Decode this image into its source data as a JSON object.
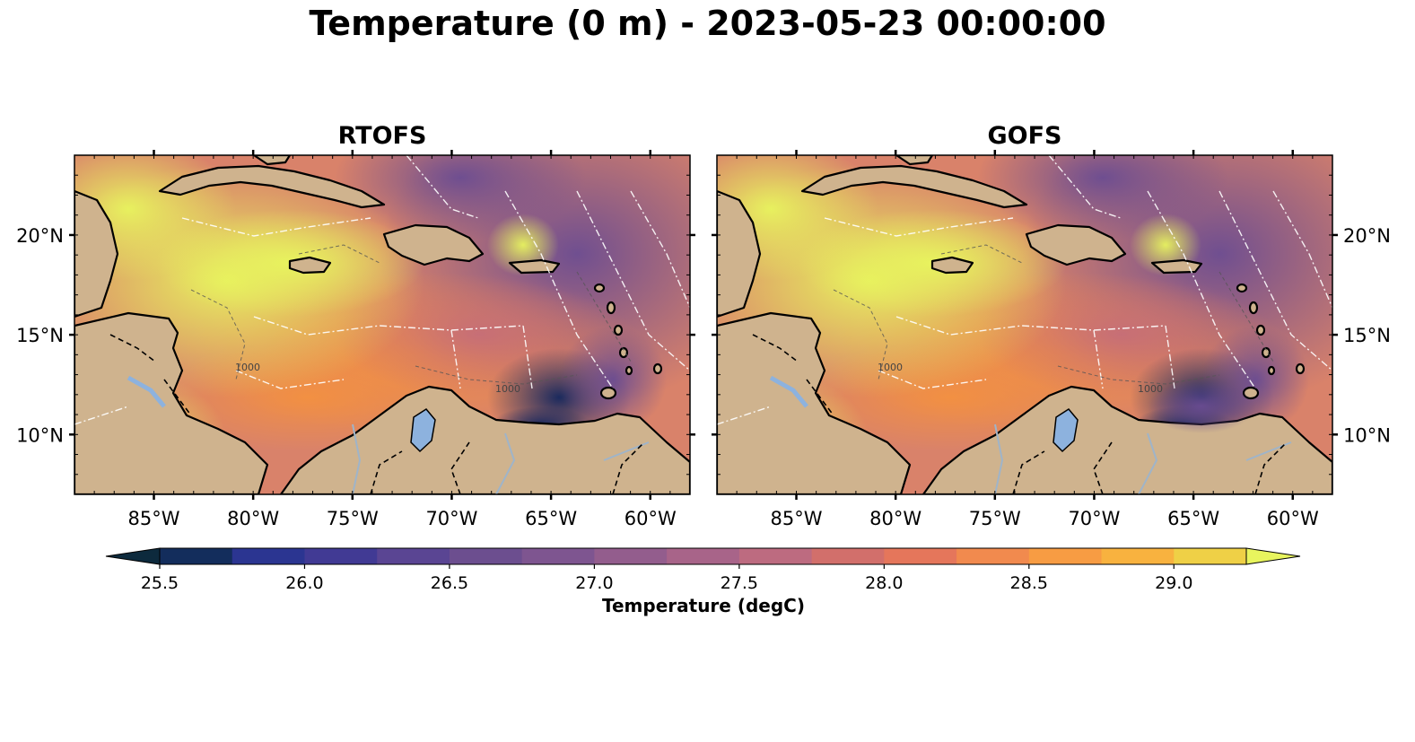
{
  "figure": {
    "title": "Temperature (0 m) - 2023-05-23 00:00:00"
  },
  "panels": [
    {
      "title": "RTOFS"
    },
    {
      "title": "GOFS"
    }
  ],
  "axes": {
    "lon_ticks": [
      "85°W",
      "80°W",
      "75°W",
      "70°W",
      "65°W",
      "60°W"
    ],
    "lon_values": [
      -85,
      -80,
      -75,
      -70,
      -65,
      -60
    ],
    "lat_ticks": [
      "20°N",
      "15°N",
      "10°N"
    ],
    "lat_values": [
      20,
      15,
      10
    ],
    "lon_range": [
      -89,
      -58
    ],
    "lat_range": [
      7,
      24
    ]
  },
  "colorbar": {
    "label": "Temperature (degC)",
    "tick_labels": [
      "25.5",
      "26.0",
      "26.5",
      "27.0",
      "27.5",
      "28.0",
      "28.5",
      "29.0"
    ],
    "tick_values": [
      25.5,
      26.0,
      26.5,
      27.0,
      27.5,
      28.0,
      28.5,
      29.0
    ],
    "range": [
      25.5,
      29.25
    ],
    "step": 0.25,
    "extend": "both",
    "colors": [
      "#0d2a3d",
      "#132d5c",
      "#2b3591",
      "#413a94",
      "#5a4593",
      "#6c4e8f",
      "#7e5590",
      "#935d8d",
      "#a86489",
      "#bd6b80",
      "#d26f6b",
      "#e5765b",
      "#f18a4e",
      "#f79c43",
      "#f8b23f",
      "#efd046",
      "#e8f55e"
    ]
  },
  "map": {
    "land_color": "#cfb38e",
    "lake_color": "#8db2de",
    "contour_labels": [
      "1000",
      "1000",
      "1000",
      "1000"
    ]
  }
}
